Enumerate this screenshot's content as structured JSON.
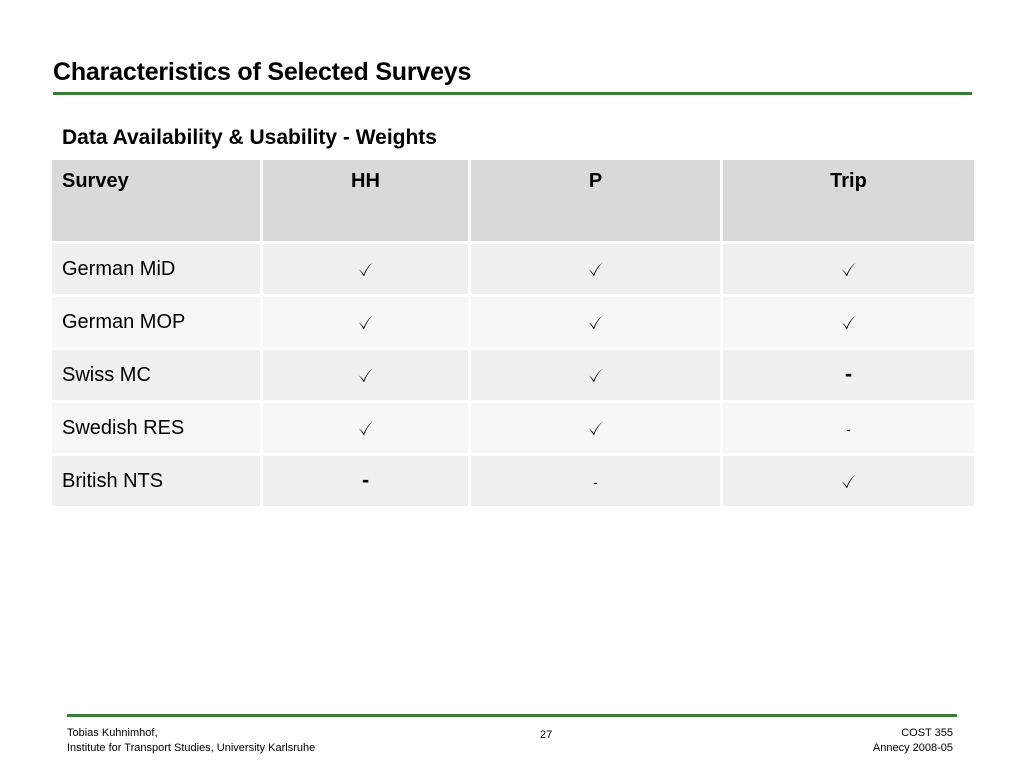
{
  "slide": {
    "title": "Characteristics of Selected Surveys",
    "subtitle": "Data Availability & Usability - Weights",
    "accent_color": "#3a7d34"
  },
  "table": {
    "headers": [
      "Survey",
      "HH",
      "P",
      "Trip"
    ],
    "rows": [
      {
        "survey": "German MiD",
        "hh": "check",
        "p": "check",
        "trip": "check"
      },
      {
        "survey": "German MOP",
        "hh": "check",
        "p": "check",
        "trip": "check"
      },
      {
        "survey": "Swiss MC",
        "hh": "check",
        "p": "check",
        "trip": "-"
      },
      {
        "survey": "Swedish RES",
        "hh": "check",
        "p": "check",
        "trip": "-"
      },
      {
        "survey": "British NTS",
        "hh": "-",
        "p": "-",
        "trip": "check"
      }
    ],
    "dash": "-"
  },
  "footer": {
    "author": "Tobias Kuhnimhof,",
    "institute": "Institute for Transport Studies, University Karlsruhe",
    "page_number": "27",
    "conference": "COST 355",
    "venue_date": "Annecy 2008-05"
  }
}
